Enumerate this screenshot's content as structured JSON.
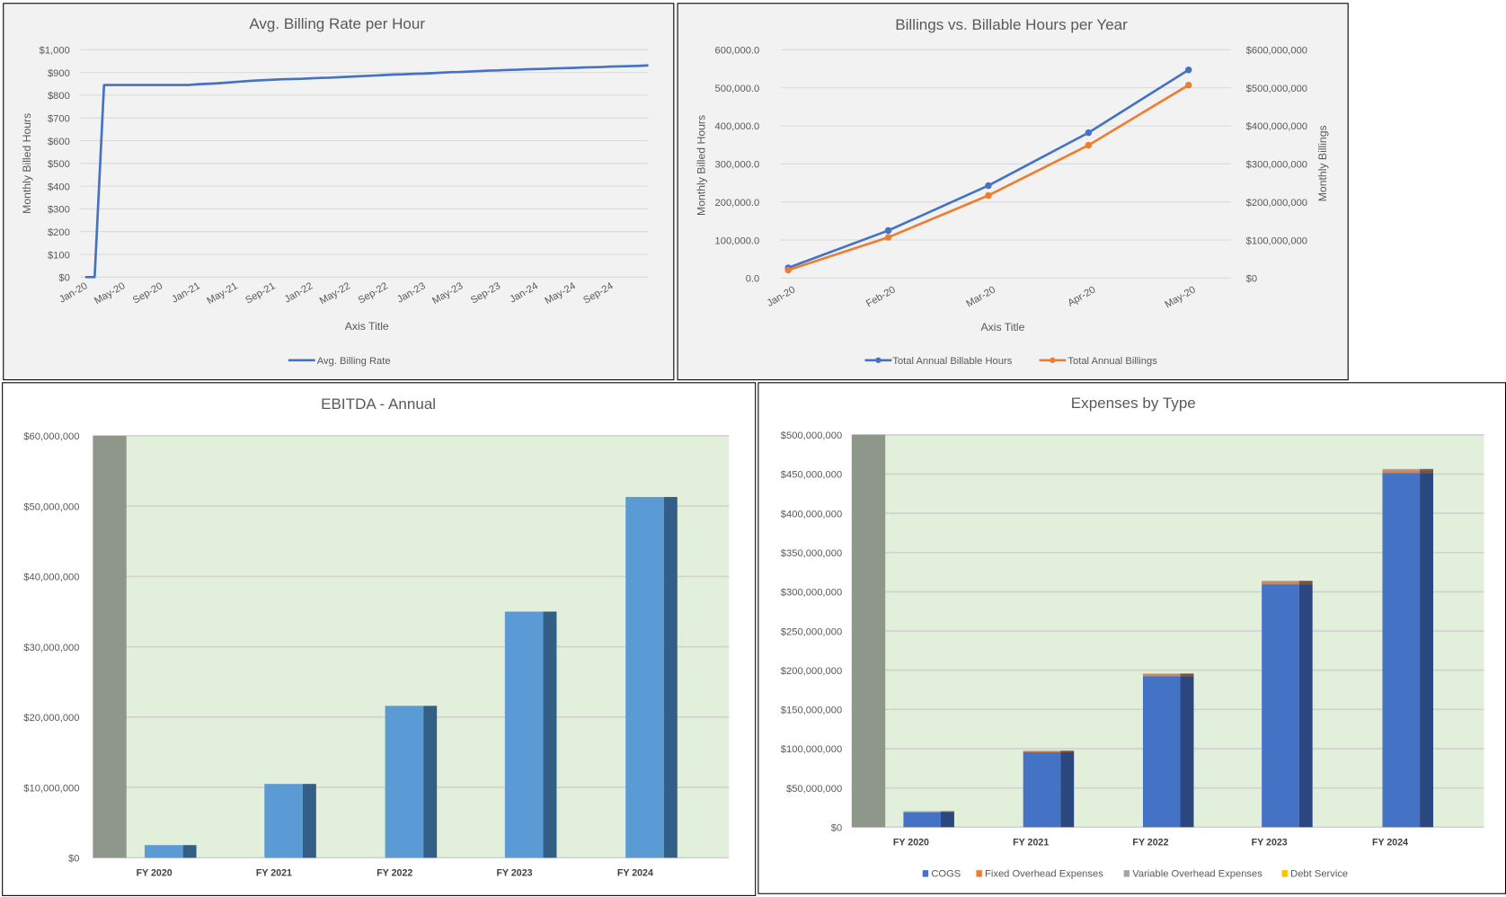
{
  "chart_data": [
    {
      "type": "line",
      "title": "Avg. Billing Rate per Hour",
      "xlabel": "Axis Title",
      "ylabel": "Monthly Billed Hours",
      "ylim": [
        0,
        1000
      ],
      "y_ticks": [
        "$0",
        "$100",
        "$200",
        "$300",
        "$400",
        "$500",
        "$600",
        "$700",
        "$800",
        "$900",
        "$1,000"
      ],
      "x": [
        "Jan-20",
        "Feb-20",
        "Mar-20",
        "Apr-20",
        "May-20",
        "Jun-20",
        "Jul-20",
        "Aug-20",
        "Sep-20",
        "Oct-20",
        "Nov-20",
        "Dec-20",
        "Jan-21",
        "Feb-21",
        "Mar-21",
        "Apr-21",
        "May-21",
        "Jun-21",
        "Jul-21",
        "Aug-21",
        "Sep-21",
        "Oct-21",
        "Nov-21",
        "Dec-21",
        "Jan-22",
        "Feb-22",
        "Mar-22",
        "Apr-22",
        "May-22",
        "Jun-22",
        "Jul-22",
        "Aug-22",
        "Sep-22",
        "Oct-22",
        "Nov-22",
        "Dec-22",
        "Jan-23",
        "Feb-23",
        "Mar-23",
        "Apr-23",
        "May-23",
        "Jun-23",
        "Jul-23",
        "Aug-23",
        "Sep-23",
        "Oct-23",
        "Nov-23",
        "Dec-23",
        "Jan-24",
        "Feb-24",
        "Mar-24",
        "Apr-24",
        "May-24",
        "Jun-24",
        "Jul-24",
        "Aug-24",
        "Sep-24",
        "Oct-24",
        "Nov-24",
        "Dec-24",
        "Jan-25"
      ],
      "x_tick_labels": [
        "Jan-20",
        "May-20",
        "Sep-20",
        "Jan-21",
        "May-21",
        "Sep-21",
        "Jan-22",
        "May-22",
        "Sep-22",
        "Jan-23",
        "May-23",
        "Sep-23",
        "Jan-24",
        "May-24",
        "Sep-24"
      ],
      "series": [
        {
          "name": "Avg. Billing Rate",
          "color": "#4472c4",
          "values": [
            0,
            0,
            845,
            845,
            845,
            845,
            845,
            845,
            845,
            845,
            845,
            845,
            848,
            850,
            852,
            855,
            858,
            861,
            864,
            866,
            868,
            870,
            871,
            872,
            874,
            876,
            877,
            879,
            881,
            883,
            885,
            887,
            889,
            891,
            892,
            894,
            895,
            897,
            899,
            901,
            902,
            904,
            906,
            908,
            909,
            911,
            912,
            914,
            915,
            916,
            918,
            919,
            920,
            922,
            923,
            924,
            926,
            927,
            928,
            929,
            931
          ]
        }
      ],
      "grid": true,
      "legend": "bottom"
    },
    {
      "type": "line",
      "title": "Billings vs. Billable Hours per Year",
      "xlabel": "Axis Title",
      "ylabel": "Monthly Billed Hours",
      "y2label": "Monthly Billings",
      "categories": [
        "Jan-20",
        "Feb-20",
        "Mar-20",
        "Apr-20",
        "May-20"
      ],
      "ylim": [
        0,
        600000
      ],
      "y2lim": [
        0,
        600000000
      ],
      "y_ticks": [
        "0.0",
        "100,000.0",
        "200,000.0",
        "300,000.0",
        "400,000.0",
        "500,000.0",
        "600,000.0"
      ],
      "y2_ticks": [
        "$0",
        "$100,000,000",
        "$200,000,000",
        "$300,000,000",
        "$400,000,000",
        "$500,000,000",
        "$600,000,000"
      ],
      "series": [
        {
          "name": "Total Annual Billable Hours",
          "axis": "left",
          "color": "#4472c4",
          "values": [
            27000,
            125000,
            243000,
            382000,
            547000
          ]
        },
        {
          "name": "Total Annual Billings",
          "axis": "right",
          "color": "#ed7d31",
          "values": [
            21000000,
            107000000,
            217000000,
            349000000,
            507000000
          ]
        }
      ],
      "grid": true,
      "legend": "bottom"
    },
    {
      "type": "bar",
      "title": "EBITDA - Annual",
      "categories": [
        "FY 2020",
        "FY 2021",
        "FY 2022",
        "FY 2023",
        "FY 2024"
      ],
      "values": [
        1800000,
        10500000,
        21600000,
        35000000,
        51300000
      ],
      "ylim": [
        0,
        60000000
      ],
      "y_ticks": [
        "$0",
        "$10,000,000",
        "$20,000,000",
        "$30,000,000",
        "$40,000,000",
        "$50,000,000",
        "$60,000,000"
      ],
      "colors": {
        "front": "#5b9bd5",
        "side": "#335f86",
        "plot_bg": "#e2efda",
        "wall": "#8f978a"
      },
      "grid": true
    },
    {
      "type": "bar",
      "stacked": true,
      "title": "Expenses by Type",
      "categories": [
        "FY 2020",
        "FY 2021",
        "FY 2022",
        "FY 2023",
        "FY 2024"
      ],
      "ylim": [
        0,
        500000000
      ],
      "y_ticks": [
        "$0",
        "$50,000,000",
        "$100,000,000",
        "$150,000,000",
        "$200,000,000",
        "$250,000,000",
        "$300,000,000",
        "$350,000,000",
        "$400,000,000",
        "$450,000,000",
        "$500,000,000"
      ],
      "series": [
        {
          "name": "COGS",
          "color": "#4472c4",
          "side": "#2a4780",
          "values": [
            19000000,
            95500000,
            192500000,
            309500000,
            451500000
          ]
        },
        {
          "name": "Fixed Overhead Expenses",
          "color": "#ed7d31",
          "side": "#8f4c1e",
          "values": [
            1000000,
            1500000,
            2500000,
            3500000,
            3500000
          ]
        },
        {
          "name": "Variable Overhead Expenses",
          "color": "#a5a5a5",
          "side": "#636363",
          "values": [
            300000,
            500000,
            800000,
            1000000,
            1500000
          ]
        },
        {
          "name": "Debt Service",
          "color": "#ffc000",
          "side": "#997300",
          "values": [
            0,
            0,
            0,
            0,
            0
          ]
        }
      ],
      "colors": {
        "plot_bg": "#e2efda",
        "wall": "#8f978a"
      },
      "grid": true,
      "legend": "bottom"
    }
  ]
}
